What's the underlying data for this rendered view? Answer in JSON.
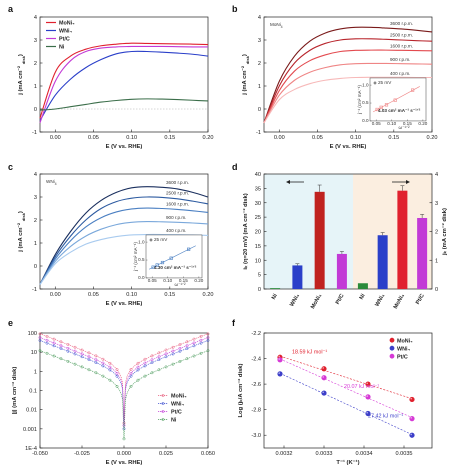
{
  "figure": {
    "panel_letters": [
      "a",
      "b",
      "c",
      "d",
      "e",
      "f"
    ]
  },
  "chart_data": [
    {
      "panel": "a",
      "type": "line",
      "xlabel": "E (V vs. RHE)",
      "ylabel": "j (mA cm⁻² disk)",
      "xlim": [
        -0.02,
        0.2
      ],
      "ylim": [
        -1,
        4
      ],
      "xticks": [
        "0.00",
        "0.05",
        "0.10",
        "0.15",
        "0.20"
      ],
      "yticks": [
        "-1",
        "0",
        "1",
        "2",
        "3",
        "4"
      ],
      "legend": "top-left",
      "series": [
        {
          "name": "MoNi₄",
          "color": "#e0212e",
          "x": [
            -0.02,
            0.0,
            0.02,
            0.04,
            0.06,
            0.08,
            0.1,
            0.12,
            0.14,
            0.16,
            0.18,
            0.2
          ],
          "values": [
            -0.4,
            1.6,
            2.3,
            2.6,
            2.75,
            2.82,
            2.86,
            2.85,
            2.84,
            2.83,
            2.82,
            2.8
          ]
        },
        {
          "name": "WNi₄",
          "color": "#2a3fc9",
          "x": [
            -0.02,
            0.0,
            0.02,
            0.04,
            0.06,
            0.08,
            0.1,
            0.12,
            0.14,
            0.16,
            0.18,
            0.2
          ],
          "values": [
            -0.5,
            0.6,
            1.3,
            1.8,
            2.15,
            2.4,
            2.5,
            2.5,
            2.47,
            2.43,
            2.38,
            2.3
          ]
        },
        {
          "name": "Pt/C",
          "color": "#c23ad6",
          "x": [
            -0.02,
            0.0,
            0.02,
            0.04,
            0.06,
            0.08,
            0.1,
            0.12,
            0.14,
            0.16,
            0.18,
            0.2
          ],
          "values": [
            -0.6,
            1.2,
            2.1,
            2.5,
            2.65,
            2.7,
            2.72,
            2.72,
            2.72,
            2.71,
            2.7,
            2.7
          ]
        },
        {
          "name": "Ni",
          "color": "#3b6e4a",
          "x": [
            -0.02,
            0.0,
            0.02,
            0.04,
            0.06,
            0.08,
            0.1,
            0.12,
            0.14,
            0.16,
            0.18,
            0.2
          ],
          "values": [
            -0.05,
            0.0,
            0.1,
            0.2,
            0.3,
            0.37,
            0.42,
            0.44,
            0.43,
            0.41,
            0.38,
            0.35
          ]
        }
      ]
    },
    {
      "panel": "b",
      "type": "line",
      "label": "MoNi₄",
      "xlabel": "E (V vs. RHE)",
      "ylabel": "j (mA cm⁻² disk)",
      "xlim": [
        -0.02,
        0.2
      ],
      "ylim": [
        -1,
        4
      ],
      "xticks": [
        "0.00",
        "0.05",
        "0.10",
        "0.15",
        "0.20"
      ],
      "yticks": [
        "-1",
        "0",
        "1",
        "2",
        "3",
        "4"
      ],
      "series": [
        {
          "name": "3600 r.p.m.",
          "color": "#7a1a1a",
          "x": [
            -0.02,
            0.0,
            0.02,
            0.04,
            0.06,
            0.08,
            0.1,
            0.12,
            0.14,
            0.16,
            0.18,
            0.2
          ],
          "values": [
            -0.6,
            1.2,
            2.3,
            2.95,
            3.3,
            3.48,
            3.55,
            3.55,
            3.52,
            3.48,
            3.42,
            3.35
          ]
        },
        {
          "name": "2500 r.p.m.",
          "color": "#b8252c",
          "x": [
            -0.02,
            0.0,
            0.02,
            0.04,
            0.06,
            0.08,
            0.1,
            0.12,
            0.14,
            0.16,
            0.18,
            0.2
          ],
          "values": [
            -0.6,
            1.0,
            2.0,
            2.55,
            2.85,
            3.0,
            3.05,
            3.05,
            3.03,
            3.0,
            2.97,
            2.95
          ]
        },
        {
          "name": "1600 r.p.m.",
          "color": "#e34a4f",
          "x": [
            -0.02,
            0.0,
            0.02,
            0.04,
            0.06,
            0.08,
            0.1,
            0.12,
            0.14,
            0.16,
            0.18,
            0.2
          ],
          "values": [
            -0.6,
            0.8,
            1.65,
            2.1,
            2.35,
            2.5,
            2.55,
            2.56,
            2.56,
            2.55,
            2.54,
            2.53
          ]
        },
        {
          "name": "900 r.p.m.",
          "color": "#ef8585",
          "x": [
            -0.02,
            0.0,
            0.02,
            0.04,
            0.06,
            0.08,
            0.1,
            0.12,
            0.14,
            0.16,
            0.18,
            0.2
          ],
          "values": [
            -0.6,
            0.6,
            1.25,
            1.6,
            1.8,
            1.92,
            1.97,
            1.98,
            1.98,
            1.97,
            1.96,
            1.95
          ]
        },
        {
          "name": "400 r.p.m.",
          "color": "#f7b9b9",
          "x": [
            -0.02,
            0.0,
            0.02,
            0.04,
            0.06,
            0.08,
            0.1,
            0.12,
            0.14,
            0.16,
            0.18,
            0.2
          ],
          "values": [
            -0.6,
            0.4,
            0.85,
            1.1,
            1.25,
            1.33,
            1.37,
            1.38,
            1.38,
            1.38,
            1.37,
            1.37
          ]
        }
      ],
      "inset": {
        "type": "scatter",
        "legend": "25 mV",
        "xlabel": "ω⁻¹ᐟ²",
        "ylabel": "j⁻¹ (cm² mA⁻¹)",
        "xticks": [
          "0.05",
          "0.10",
          "0.15",
          "0.20"
        ],
        "yticks": [
          "0.0",
          "0.5",
          "1.0"
        ],
        "x": [
          0.053,
          0.066,
          0.083,
          0.111,
          0.167
        ],
        "values": [
          0.32,
          0.38,
          0.45,
          0.58,
          0.86
        ],
        "annotation": "4.03 cm² mA⁻¹ s⁻¹ᐟ²",
        "color": "#ef8585"
      }
    },
    {
      "panel": "c",
      "type": "line",
      "label": "WNi₄",
      "xlabel": "E (V vs. RHE)",
      "ylabel": "j (mA cm⁻² disk)",
      "xlim": [
        -0.02,
        0.2
      ],
      "ylim": [
        -1,
        4
      ],
      "xticks": [
        "0.00",
        "0.05",
        "0.10",
        "0.15",
        "0.20"
      ],
      "yticks": [
        "-1",
        "0",
        "1",
        "2",
        "3",
        "4"
      ],
      "series": [
        {
          "name": "3600 r.p.m.",
          "color": "#1a2f5e",
          "x": [
            -0.02,
            0.0,
            0.02,
            0.04,
            0.06,
            0.08,
            0.1,
            0.12,
            0.14,
            0.16,
            0.18,
            0.2
          ],
          "values": [
            -0.8,
            0.5,
            1.5,
            2.3,
            2.85,
            3.2,
            3.4,
            3.45,
            3.42,
            3.35,
            3.2,
            3.0
          ]
        },
        {
          "name": "2500 r.p.m.",
          "color": "#2c5aa0",
          "x": [
            -0.02,
            0.0,
            0.02,
            0.04,
            0.06,
            0.08,
            0.1,
            0.12,
            0.14,
            0.16,
            0.18,
            0.2
          ],
          "values": [
            -0.8,
            0.4,
            1.3,
            2.0,
            2.5,
            2.8,
            2.95,
            3.0,
            2.98,
            2.92,
            2.82,
            2.7
          ]
        },
        {
          "name": "1600 r.p.m.",
          "color": "#4a7fc2",
          "x": [
            -0.02,
            0.0,
            0.02,
            0.04,
            0.06,
            0.08,
            0.1,
            0.12,
            0.14,
            0.16,
            0.18,
            0.2
          ],
          "values": [
            -0.8,
            0.3,
            1.1,
            1.7,
            2.1,
            2.35,
            2.48,
            2.52,
            2.5,
            2.46,
            2.4,
            2.33
          ]
        },
        {
          "name": "900 r.p.m.",
          "color": "#7aa8db",
          "x": [
            -0.02,
            0.0,
            0.02,
            0.04,
            0.06,
            0.08,
            0.1,
            0.12,
            0.14,
            0.16,
            0.18,
            0.2
          ],
          "values": [
            -0.8,
            0.2,
            0.85,
            1.3,
            1.6,
            1.8,
            1.9,
            1.93,
            1.92,
            1.9,
            1.87,
            1.83
          ]
        },
        {
          "name": "400 r.p.m.",
          "color": "#a9cbef",
          "x": [
            -0.02,
            0.0,
            0.02,
            0.04,
            0.06,
            0.08,
            0.1,
            0.12,
            0.14,
            0.16,
            0.18,
            0.2
          ],
          "values": [
            -0.8,
            0.1,
            0.6,
            0.95,
            1.15,
            1.28,
            1.35,
            1.37,
            1.37,
            1.36,
            1.35,
            1.33
          ]
        }
      ],
      "inset": {
        "type": "scatter",
        "legend": "25 mV",
        "xlabel": "ω⁻¹ᐟ²",
        "ylabel": "j⁻¹ (cm² mA⁻¹)",
        "xticks": [
          "0.05",
          "0.10",
          "0.15",
          "0.20"
        ],
        "yticks": [
          "0.0",
          "0.5",
          "1.0"
        ],
        "x": [
          0.053,
          0.066,
          0.083,
          0.111,
          0.167
        ],
        "values": [
          0.3,
          0.36,
          0.43,
          0.55,
          0.8
        ],
        "annotation": "4.30 cm² mA⁻¹ s⁻¹ᐟ²",
        "color": "#4a7fc2"
      }
    },
    {
      "panel": "d",
      "type": "bar",
      "left_ylabel": "iₖ (η=20 mV) (mA cm⁻² disk)",
      "right_ylabel": "jₖ (mA cm⁻² disk)",
      "left_ylim": [
        0,
        40
      ],
      "right_ylim": [
        0,
        4
      ],
      "left_yticks": [
        "0",
        "5",
        "10",
        "15",
        "20",
        "25",
        "30",
        "35",
        "40"
      ],
      "right_yticks": [
        "0",
        "1",
        "2",
        "3",
        "4"
      ],
      "categories_left": [
        "Ni",
        "WNi₄",
        "MoNi₄",
        "Pt/C"
      ],
      "values_left": [
        0.3,
        8.2,
        33.8,
        12.2
      ],
      "colors_left": [
        "#2a8a3a",
        "#2a3fc9",
        "#c0221f",
        "#c23ad6"
      ],
      "categories_right": [
        "Ni",
        "WNi₄",
        "MoNi₄",
        "Pt/C"
      ],
      "values_right": [
        0.2,
        1.87,
        3.42,
        2.47
      ],
      "colors_right": [
        "#2a8a3a",
        "#2a3fc9",
        "#e0212e",
        "#c23ad6"
      ],
      "bg_left": "#e6f4f8",
      "bg_right": "#fbeee0"
    },
    {
      "panel": "e",
      "type": "line",
      "xlabel": "E (V vs. RHE)",
      "ylabel": "|j| (mA cm⁻² disk)",
      "log_y": true,
      "xlim": [
        -0.05,
        0.05
      ],
      "ylim": [
        0.0001,
        100
      ],
      "xticks": [
        "-0.050",
        "-0.025",
        "0.000",
        "0.025",
        "0.050"
      ],
      "yticks": [
        "1E-4",
        "0.001",
        "0.01",
        "0.1",
        "1",
        "10",
        "100"
      ],
      "legend": "center-right",
      "series": [
        {
          "name": "MoNi₄",
          "color": "#e85a7a",
          "i0": 1.9,
          "imin": 0.002
        },
        {
          "name": "WNi₄",
          "color": "#3d4fd0",
          "i0": 0.85,
          "imin": 0.001
        },
        {
          "name": "Pt/C",
          "color": "#c23ad6",
          "i0": 1.2,
          "imin": 0.0015
        },
        {
          "name": "Ni",
          "color": "#4a9a5a",
          "i0": 0.25,
          "imin": 0.0003
        }
      ]
    },
    {
      "panel": "f",
      "type": "scatter",
      "xlabel": "T⁻¹ (K⁻¹)",
      "ylabel": "Log (jₖ/A cm⁻² disk)",
      "xlim": [
        0.00315,
        0.00357
      ],
      "ylim": [
        -3.1,
        -2.2
      ],
      "xticks": [
        "0.0032",
        "0.0033",
        "0.0034",
        "0.0035"
      ],
      "yticks": [
        "-3.0",
        "-2.8",
        "-2.6",
        "-2.4",
        "-2.2"
      ],
      "legend": "top-right",
      "series": [
        {
          "name": "MoNi₄",
          "color": "#e0212e",
          "x": [
            0.00319,
            0.0033,
            0.00341,
            0.00352
          ],
          "values": [
            -2.39,
            -2.48,
            -2.6,
            -2.72
          ],
          "annotation": "18.59 kJ mol⁻¹"
        },
        {
          "name": "WNi₄",
          "color": "#3d3fc9",
          "x": [
            0.00319,
            0.0033,
            0.00341,
            0.00352
          ],
          "values": [
            -2.52,
            -2.67,
            -2.83,
            -3.0
          ],
          "annotation": "27.42 kJ mol⁻¹"
        },
        {
          "name": "Pt/C",
          "color": "#d63ad6",
          "x": [
            0.00319,
            0.0033,
            0.00341,
            0.00352
          ],
          "values": [
            -2.41,
            -2.55,
            -2.7,
            -2.87
          ],
          "annotation": "20.07 kJ mol⁻¹"
        }
      ]
    }
  ]
}
